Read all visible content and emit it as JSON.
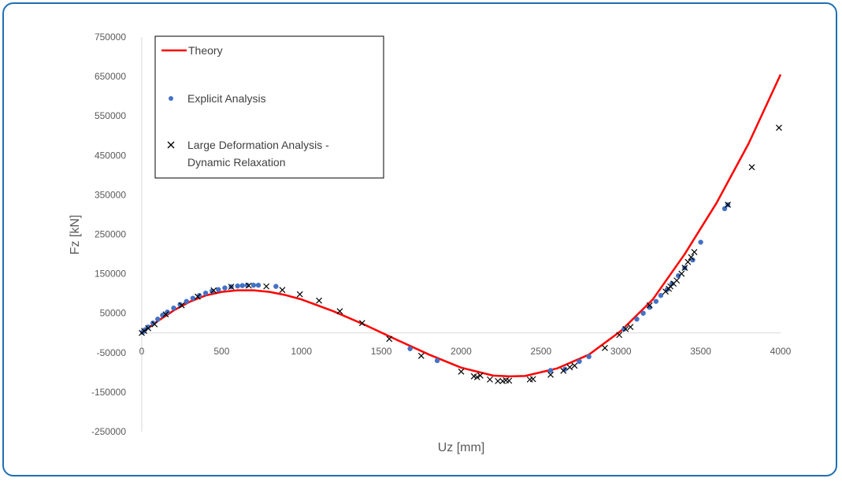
{
  "chart_data": {
    "type": "scatter",
    "xlabel": "Uz [mm]",
    "ylabel": "Fz [kN]",
    "xlim": [
      0,
      4000
    ],
    "ylim": [
      -250000,
      750000
    ],
    "x_ticks": [
      0,
      500,
      1000,
      1500,
      2000,
      2500,
      3000,
      3500,
      4000
    ],
    "y_ticks": [
      750000,
      650000,
      550000,
      450000,
      350000,
      250000,
      150000,
      50000,
      -50000,
      -150000,
      -250000
    ],
    "grid": false,
    "legend_position": "top-left",
    "series": [
      {
        "name": "Theory",
        "style": "line",
        "color": "#ff0000",
        "x": [
          0,
          100,
          200,
          300,
          400,
          500,
          600,
          700,
          800,
          900,
          1000,
          1200,
          1400,
          1600,
          1800,
          2000,
          2200,
          2300,
          2400,
          2600,
          2800,
          3000,
          3200,
          3400,
          3600,
          3800,
          4000
        ],
        "y": [
          0,
          30000,
          57000,
          79000,
          95000,
          104000,
          108000,
          108000,
          104000,
          96000,
          85000,
          55000,
          20000,
          -18000,
          -55000,
          -88000,
          -108000,
          -110000,
          -109000,
          -90000,
          -55000,
          5000,
          85000,
          200000,
          330000,
          480000,
          655000
        ]
      },
      {
        "name": "Explicit Analysis",
        "style": "marker-circle",
        "color": "#4472c4",
        "x": [
          5,
          20,
          40,
          70,
          100,
          130,
          160,
          200,
          240,
          280,
          320,
          360,
          400,
          440,
          480,
          520,
          560,
          600,
          630,
          660,
          700,
          730,
          840,
          1680,
          1850,
          2560,
          2650,
          2740,
          2800,
          3020,
          3100,
          3140,
          3180,
          3220,
          3250,
          3290,
          3320,
          3360,
          3400,
          3450,
          3500,
          3650,
          3670
        ],
        "y": [
          2000,
          8000,
          15000,
          25000,
          35000,
          45000,
          53000,
          63000,
          72000,
          80000,
          88000,
          95000,
          101000,
          106000,
          110000,
          114000,
          117000,
          119000,
          120000,
          121000,
          121000,
          121000,
          118000,
          -40000,
          -70000,
          -95000,
          -92000,
          -72000,
          -60000,
          10000,
          35000,
          50000,
          65000,
          80000,
          95000,
          110000,
          125000,
          145000,
          165000,
          185000,
          230000,
          315000,
          325000
        ]
      },
      {
        "name": "Large Deformation Analysis - Dynamic Relaxation",
        "style": "marker-x",
        "color": "#000000",
        "x": [
          0,
          15,
          40,
          80,
          150,
          250,
          350,
          450,
          560,
          670,
          780,
          880,
          990,
          1110,
          1240,
          1380,
          1550,
          1750,
          2000,
          2080,
          2100,
          2120,
          2180,
          2230,
          2260,
          2280,
          2300,
          2430,
          2450,
          2560,
          2640,
          2680,
          2710,
          2900,
          2990,
          3030,
          3060,
          3180,
          3280,
          3300,
          3310,
          3330,
          3350,
          3380,
          3400,
          3420,
          3440,
          3460,
          3670,
          3820,
          3990
        ],
        "y": [
          0,
          5000,
          12000,
          22000,
          47000,
          70000,
          92000,
          108000,
          117000,
          120000,
          118000,
          109000,
          98000,
          82000,
          55000,
          25000,
          -15000,
          -58000,
          -98000,
          -110000,
          -112000,
          -108000,
          -118000,
          -122000,
          -122000,
          -120000,
          -121000,
          -118000,
          -117000,
          -106000,
          -96000,
          -87000,
          -83000,
          -38000,
          -5000,
          10000,
          15000,
          70000,
          105000,
          112000,
          118000,
          125000,
          133000,
          150000,
          165000,
          180000,
          192000,
          205000,
          325000,
          420000,
          520000
        ]
      }
    ]
  }
}
